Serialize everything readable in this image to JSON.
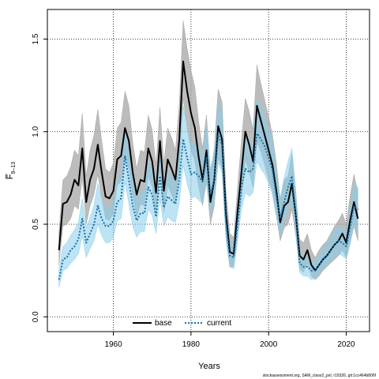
{
  "chart_data": {
    "type": "line",
    "xlabel": "Years",
    "ylabel": "F̅",
    "ylabel_sub": "9–13",
    "xlim": [
      1943,
      2026
    ],
    "ylim": [
      -0.08,
      1.66
    ],
    "x_ticks": [
      1960,
      1980,
      2000,
      2020
    ],
    "y_ticks": [
      0.0,
      0.5,
      1.0,
      1.5
    ],
    "y_tick_labels": [
      "0.0",
      "0.5",
      "1.0",
      "1.5"
    ],
    "grid": "dotted",
    "legend_position": "bottom",
    "footnote": "stockassessment.org, SAM_class2_pol, r19326, git:1cc464b806f",
    "x": [
      1946,
      1947,
      1948,
      1949,
      1950,
      1951,
      1952,
      1953,
      1954,
      1955,
      1956,
      1957,
      1958,
      1959,
      1960,
      1961,
      1962,
      1963,
      1964,
      1965,
      1966,
      1967,
      1968,
      1969,
      1970,
      1971,
      1972,
      1973,
      1974,
      1975,
      1976,
      1977,
      1978,
      1979,
      1980,
      1981,
      1982,
      1983,
      1984,
      1985,
      1986,
      1987,
      1988,
      1989,
      1990,
      1991,
      1992,
      1993,
      1994,
      1995,
      1996,
      1997,
      1998,
      1999,
      2000,
      2001,
      2002,
      2003,
      2004,
      2005,
      2006,
      2007,
      2008,
      2009,
      2010,
      2011,
      2012,
      2013,
      2014,
      2015,
      2016,
      2017,
      2018,
      2019,
      2020,
      2021,
      2022,
      2023
    ],
    "series": [
      {
        "name": "base",
        "color": "#000000",
        "line_style": "solid",
        "band_color": "#a6a6a6",
        "values": [
          0.36,
          0.61,
          0.62,
          0.66,
          0.74,
          0.71,
          0.91,
          0.62,
          0.74,
          0.8,
          0.93,
          0.78,
          0.65,
          0.64,
          0.68,
          0.85,
          0.87,
          1.02,
          0.95,
          0.78,
          0.66,
          0.74,
          0.73,
          0.91,
          0.84,
          0.67,
          0.95,
          0.68,
          0.85,
          0.8,
          0.74,
          0.96,
          1.38,
          1.22,
          1.1,
          1.02,
          0.86,
          0.74,
          0.9,
          0.62,
          0.74,
          1.03,
          0.96,
          0.56,
          0.35,
          0.34,
          0.57,
          0.78,
          1.0,
          0.93,
          0.84,
          1.14,
          1.06,
          0.98,
          0.9,
          0.82,
          0.68,
          0.51,
          0.6,
          0.62,
          0.72,
          0.55,
          0.33,
          0.31,
          0.36,
          0.28,
          0.25,
          0.28,
          0.31,
          0.33,
          0.36,
          0.39,
          0.41,
          0.45,
          0.4,
          0.52,
          0.62,
          0.53
        ],
        "lower": [
          0.28,
          0.49,
          0.5,
          0.53,
          0.6,
          0.58,
          0.75,
          0.5,
          0.6,
          0.66,
          0.77,
          0.64,
          0.53,
          0.52,
          0.56,
          0.71,
          0.73,
          0.87,
          0.8,
          0.65,
          0.54,
          0.61,
          0.6,
          0.76,
          0.7,
          0.55,
          0.8,
          0.56,
          0.71,
          0.66,
          0.61,
          0.81,
          1.18,
          1.02,
          0.9,
          0.84,
          0.7,
          0.6,
          0.74,
          0.5,
          0.6,
          0.86,
          0.8,
          0.45,
          0.27,
          0.27,
          0.46,
          0.64,
          0.85,
          0.78,
          0.7,
          0.95,
          0.89,
          0.82,
          0.74,
          0.68,
          0.55,
          0.41,
          0.48,
          0.5,
          0.58,
          0.44,
          0.26,
          0.24,
          0.29,
          0.22,
          0.2,
          0.22,
          0.25,
          0.27,
          0.29,
          0.31,
          0.33,
          0.36,
          0.32,
          0.41,
          0.49,
          0.41
        ],
        "upper": [
          0.46,
          0.74,
          0.76,
          0.81,
          0.9,
          0.87,
          1.1,
          0.76,
          0.9,
          0.98,
          1.12,
          0.95,
          0.8,
          0.78,
          0.83,
          1.02,
          1.05,
          1.22,
          1.14,
          0.94,
          0.8,
          0.9,
          0.89,
          1.09,
          1.01,
          0.82,
          1.13,
          0.83,
          1.02,
          0.97,
          0.9,
          1.15,
          1.6,
          1.45,
          1.33,
          1.24,
          1.05,
          0.91,
          1.09,
          0.77,
          0.91,
          1.23,
          1.16,
          0.69,
          0.45,
          0.43,
          0.7,
          0.95,
          1.18,
          1.11,
          1.01,
          1.36,
          1.26,
          1.17,
          1.08,
          0.98,
          0.83,
          0.63,
          0.74,
          0.76,
          0.88,
          0.68,
          0.42,
          0.4,
          0.45,
          0.36,
          0.32,
          0.36,
          0.39,
          0.41,
          0.45,
          0.49,
          0.52,
          0.56,
          0.5,
          0.65,
          0.77,
          0.67
        ]
      },
      {
        "name": "current",
        "color": "#1a6fa8",
        "line_style": "dotted",
        "band_color": "#87ceeb",
        "values": [
          0.2,
          0.31,
          0.32,
          0.36,
          0.38,
          0.42,
          0.53,
          0.4,
          0.45,
          0.5,
          0.6,
          0.53,
          0.49,
          0.49,
          0.52,
          0.62,
          0.64,
          0.87,
          0.74,
          0.6,
          0.52,
          0.56,
          0.56,
          0.7,
          0.66,
          0.54,
          0.76,
          0.59,
          0.65,
          0.63,
          0.61,
          0.74,
          0.96,
          0.86,
          0.77,
          0.78,
          0.76,
          0.73,
          0.86,
          0.66,
          0.74,
          0.98,
          0.93,
          0.51,
          0.33,
          0.32,
          0.5,
          0.7,
          0.8,
          0.78,
          0.8,
          0.99,
          0.96,
          0.92,
          0.86,
          0.79,
          0.65,
          0.53,
          0.62,
          0.7,
          0.76,
          0.55,
          0.29,
          0.27,
          0.27,
          0.25,
          0.25,
          0.28,
          0.31,
          0.33,
          0.36,
          0.39,
          0.41,
          0.4,
          0.38,
          0.48,
          0.6,
          0.58
        ],
        "lower": [
          0.16,
          0.25,
          0.26,
          0.29,
          0.31,
          0.34,
          0.44,
          0.32,
          0.37,
          0.41,
          0.5,
          0.44,
          0.4,
          0.4,
          0.43,
          0.52,
          0.53,
          0.73,
          0.61,
          0.49,
          0.43,
          0.46,
          0.46,
          0.58,
          0.55,
          0.45,
          0.64,
          0.49,
          0.54,
          0.52,
          0.51,
          0.62,
          0.82,
          0.72,
          0.64,
          0.65,
          0.63,
          0.61,
          0.72,
          0.55,
          0.62,
          0.83,
          0.78,
          0.42,
          0.27,
          0.26,
          0.41,
          0.58,
          0.67,
          0.65,
          0.67,
          0.84,
          0.8,
          0.77,
          0.72,
          0.66,
          0.54,
          0.44,
          0.51,
          0.58,
          0.63,
          0.45,
          0.24,
          0.22,
          0.22,
          0.2,
          0.21,
          0.23,
          0.26,
          0.27,
          0.3,
          0.32,
          0.34,
          0.33,
          0.31,
          0.39,
          0.49,
          0.47
        ],
        "upper": [
          0.25,
          0.38,
          0.4,
          0.44,
          0.47,
          0.51,
          0.64,
          0.48,
          0.54,
          0.6,
          0.72,
          0.64,
          0.59,
          0.59,
          0.62,
          0.74,
          0.77,
          1.03,
          0.89,
          0.73,
          0.63,
          0.68,
          0.68,
          0.84,
          0.8,
          0.65,
          0.91,
          0.71,
          0.79,
          0.76,
          0.74,
          0.89,
          1.14,
          1.03,
          0.93,
          0.94,
          0.92,
          0.88,
          1.03,
          0.8,
          0.89,
          1.16,
          1.11,
          0.62,
          0.4,
          0.39,
          0.61,
          0.85,
          0.96,
          0.94,
          0.96,
          1.17,
          1.14,
          1.09,
          1.02,
          0.95,
          0.78,
          0.64,
          0.75,
          0.84,
          0.91,
          0.67,
          0.35,
          0.33,
          0.33,
          0.3,
          0.3,
          0.34,
          0.37,
          0.4,
          0.43,
          0.47,
          0.49,
          0.48,
          0.46,
          0.58,
          0.72,
          0.7
        ]
      }
    ]
  }
}
